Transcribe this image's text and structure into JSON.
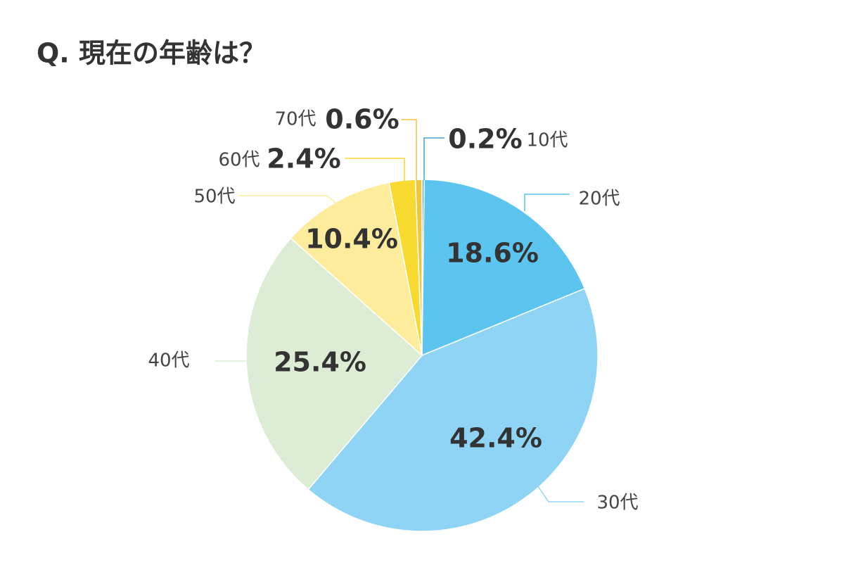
{
  "chart_data": {
    "type": "pie",
    "title": "Q. 現在の年齢は？",
    "categories": [
      "10代",
      "20代",
      "30代",
      "40代",
      "50代",
      "60代",
      "70代"
    ],
    "values": [
      0.2,
      18.6,
      42.4,
      25.4,
      10.4,
      2.4,
      0.6
    ],
    "value_labels": [
      "0.2%",
      "18.6%",
      "42.4%",
      "25.4%",
      "10.4%",
      "2.4%",
      "0.6%"
    ],
    "colors": [
      "#3fa3da",
      "#5bc4ef",
      "#90d4f5",
      "#ddecd4",
      "#fdec9b",
      "#f7d92f",
      "#f1c43e"
    ]
  }
}
